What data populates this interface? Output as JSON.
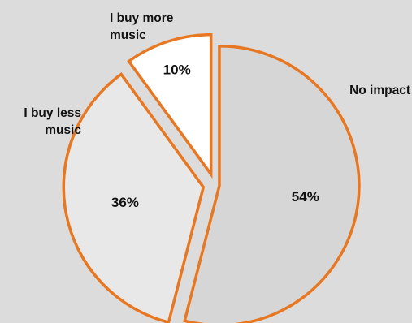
{
  "chart_data": {
    "type": "pie",
    "categories": [
      "No impact",
      "I buy less music",
      "I buy more music"
    ],
    "values": [
      54,
      36,
      10
    ],
    "value_labels": [
      "54%",
      "36%",
      "10%"
    ],
    "category_labels": [
      [
        "No impact"
      ],
      [
        "I buy less",
        "music"
      ],
      [
        "I buy more",
        "music"
      ]
    ],
    "colors": {
      "slices": [
        "#d6d6d6",
        "#e8e8e8",
        "#ffffff"
      ],
      "outline": "#e87722",
      "background": "#dcdcdc"
    },
    "exploded": true,
    "legend": "none"
  }
}
